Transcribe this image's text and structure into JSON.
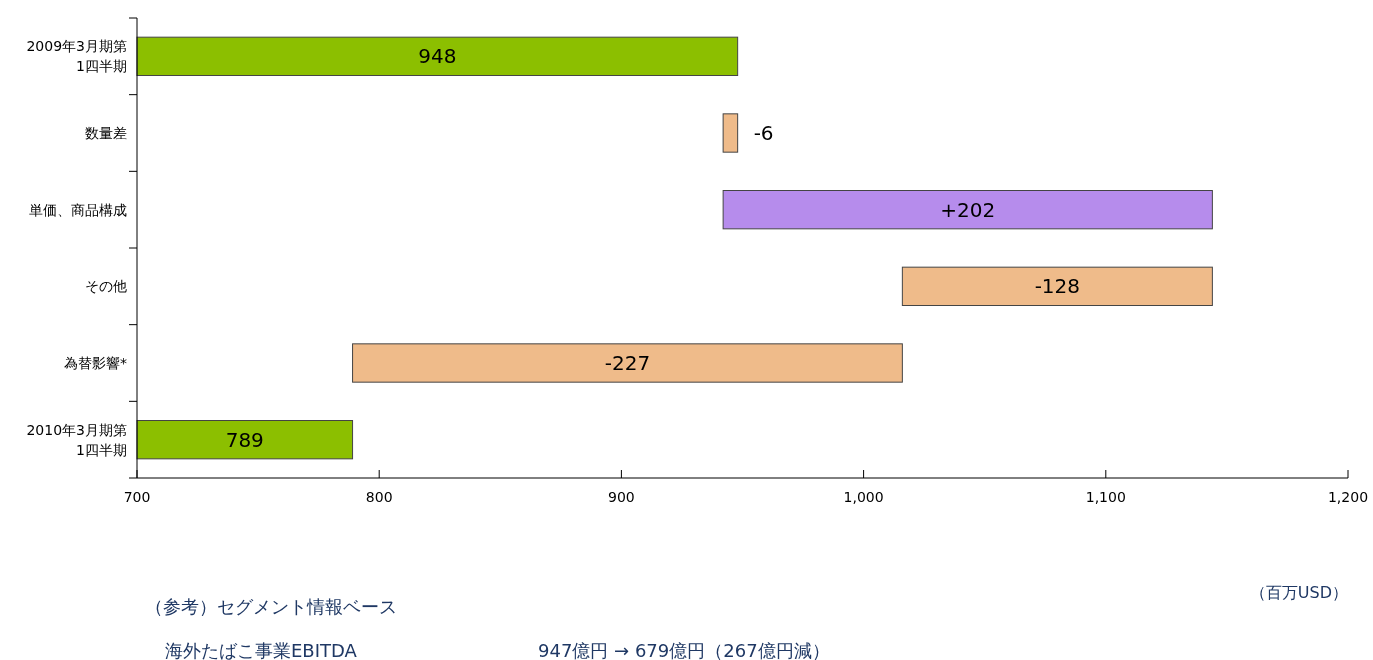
{
  "chart_data": {
    "type": "bar",
    "orientation": "horizontal",
    "categories": [
      "2009年3月期第1四半期",
      "数量差",
      "単価、商品構成",
      "その他",
      "為替影響*",
      "2010年3月期第1四半期"
    ],
    "values": [
      948,
      -6,
      202,
      -128,
      -227,
      789
    ],
    "base": [
      0,
      948,
      942,
      1144,
      1016,
      0
    ],
    "colors": [
      "#8cbf00",
      "#efbb8a",
      "#b68cec",
      "#efbb8a",
      "#efbb8a",
      "#8cbf00"
    ],
    "value_labels": [
      "948",
      "-6",
      "+202",
      "-128",
      "-227",
      "789"
    ],
    "xlim": [
      700,
      1200
    ],
    "xticks": [
      700,
      800,
      900,
      {
        "value": 1000,
        "label": "1,000"
      },
      {
        "value": 1100,
        "label": "1,100"
      },
      {
        "value": 1200,
        "label": "1,200"
      }
    ],
    "xlabel": "（百万USD）",
    "annotations": [
      "（参考）セグメント情報ベース",
      "海外たばこ事業EBITDA",
      "947億円 → 679億円（267億円減）"
    ]
  }
}
